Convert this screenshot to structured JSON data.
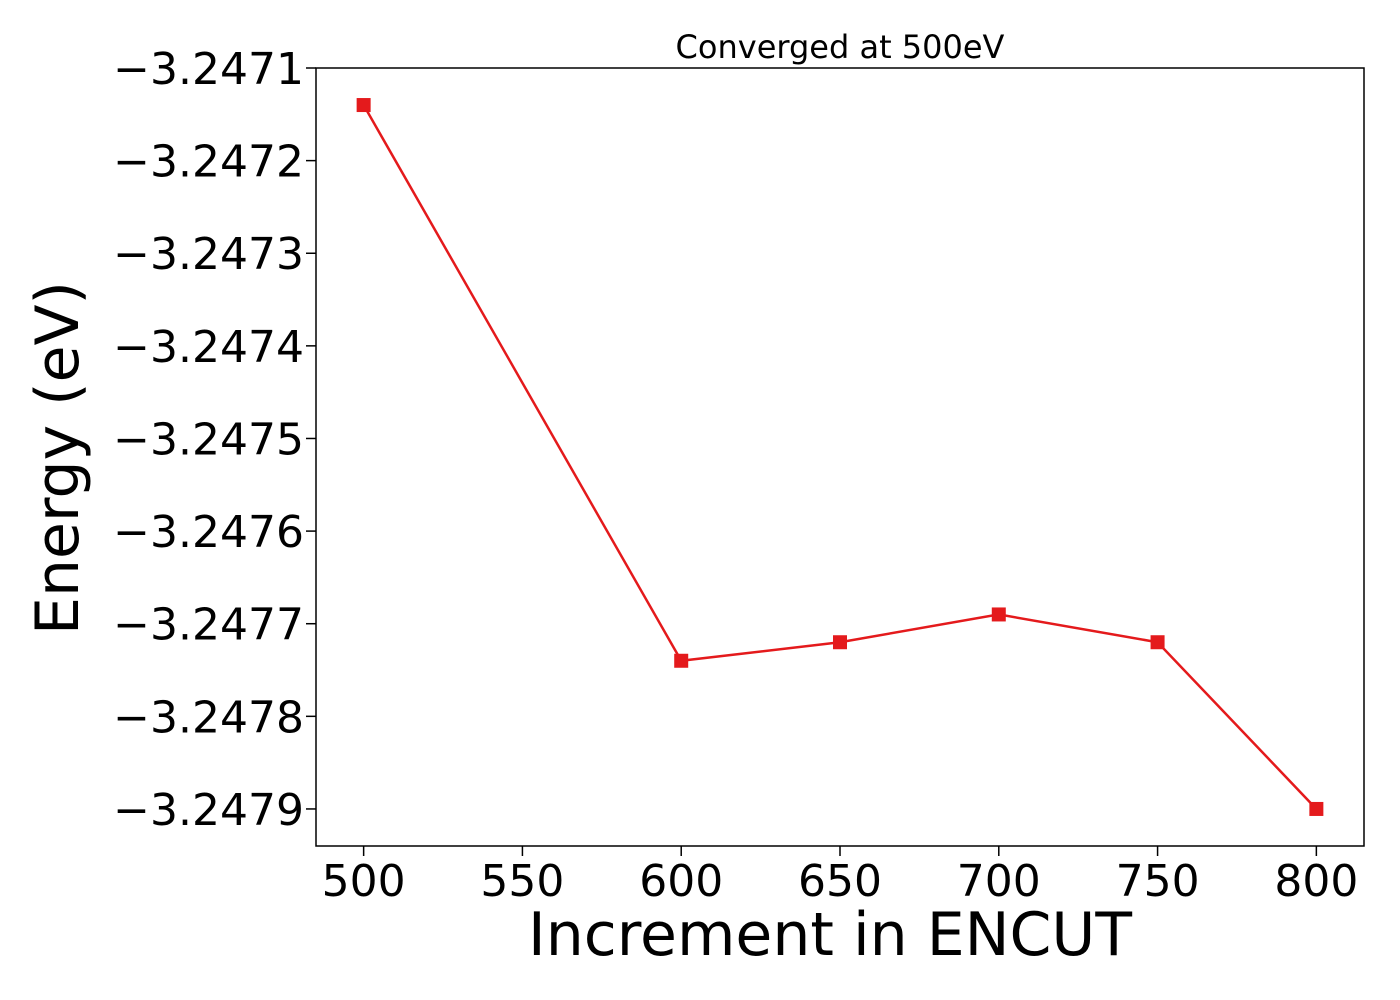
{
  "chart_data": {
    "type": "line",
    "title": "Converged at 500eV",
    "xlabel": "Increment in ENCUT",
    "ylabel": "Energy (eV)",
    "x": [
      500,
      600,
      650,
      700,
      750,
      800
    ],
    "series": [
      {
        "values": [
          -3.24714,
          -3.24774,
          -3.24772,
          -3.24769,
          -3.24772,
          -3.2479
        ],
        "color": "#e41a1c",
        "marker": "square"
      }
    ],
    "xlim": [
      485,
      815
    ],
    "ylim": [
      -3.24794,
      -3.2471
    ],
    "xticks": [
      500,
      550,
      600,
      650,
      700,
      750,
      800
    ],
    "yticks": [
      -3.2471,
      -3.2472,
      -3.2473,
      -3.2474,
      -3.2475,
      -3.2476,
      -3.2477,
      -3.2478,
      -3.2479
    ],
    "xtick_labels": [
      "500",
      "550",
      "600",
      "650",
      "700",
      "750",
      "800"
    ],
    "ytick_labels": [
      "−3.2471",
      "−3.2472",
      "−3.2473",
      "−3.2474",
      "−3.2475",
      "−3.2476",
      "−3.2477",
      "−3.2478",
      "−3.2479"
    ],
    "grid": false,
    "legend": "none"
  }
}
